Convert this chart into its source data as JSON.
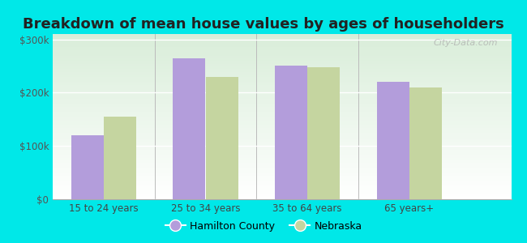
{
  "title": "Breakdown of mean house values by ages of householders",
  "categories": [
    "15 to 24 years",
    "25 to 34 years",
    "35 to 64 years",
    "65 years+"
  ],
  "hamilton_values": [
    120000,
    265000,
    250000,
    220000
  ],
  "nebraska_values": [
    155000,
    230000,
    248000,
    210000
  ],
  "hamilton_color": "#b39ddb",
  "nebraska_color": "#c5d5a0",
  "background_color": "#00e8e8",
  "ylim": [
    0,
    310000
  ],
  "yticks": [
    0,
    100000,
    200000,
    300000
  ],
  "ytick_labels": [
    "$0",
    "$100k",
    "$200k",
    "$300k"
  ],
  "bar_width": 0.32,
  "title_fontsize": 13,
  "legend_hamilton": "Hamilton County",
  "legend_nebraska": "Nebraska",
  "watermark": "City-Data.com"
}
